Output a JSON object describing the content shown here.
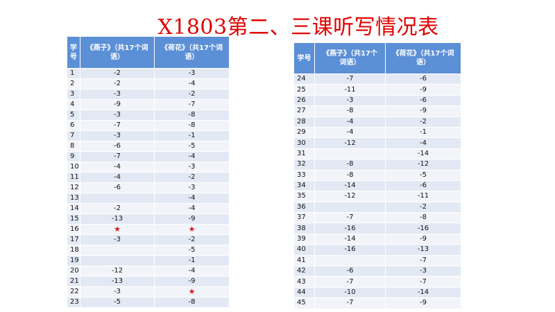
{
  "title": "X1803第二、三课听写情况表",
  "colors": {
    "title": "#e00000",
    "header_bg": "#5b8fd6",
    "row_odd": "#e3e9f4",
    "row_even": "#f2f4f9",
    "star": "#d81818"
  },
  "left_table": {
    "headers": {
      "no": "学号",
      "col1": "《燕子》（共17个词语）",
      "col2": "《荷花》（共17个词语）"
    },
    "rows": [
      {
        "no": "1",
        "a": "-2",
        "b": "-3"
      },
      {
        "no": "2",
        "a": "-2",
        "b": "-4"
      },
      {
        "no": "3",
        "a": "-3",
        "b": "-2"
      },
      {
        "no": "4",
        "a": "-9",
        "b": "-7"
      },
      {
        "no": "5",
        "a": "-3",
        "b": "-8"
      },
      {
        "no": "6",
        "a": "-7",
        "b": "-8"
      },
      {
        "no": "7",
        "a": "-3",
        "b": "-1"
      },
      {
        "no": "8",
        "a": "-6",
        "b": "-5"
      },
      {
        "no": "9",
        "a": "-7",
        "b": "-4"
      },
      {
        "no": "10",
        "a": "-4",
        "b": "-3"
      },
      {
        "no": "11",
        "a": "-4",
        "b": "-2"
      },
      {
        "no": "12",
        "a": "-6",
        "b": "-3"
      },
      {
        "no": "13",
        "a": "",
        "b": "-4"
      },
      {
        "no": "14",
        "a": "-2",
        "b": "-4"
      },
      {
        "no": "15",
        "a": "-13",
        "b": "-9"
      },
      {
        "no": "16",
        "a": "★",
        "b": "★"
      },
      {
        "no": "17",
        "a": "-3",
        "b": "-2"
      },
      {
        "no": "18",
        "a": "",
        "b": "-5"
      },
      {
        "no": "19",
        "a": "",
        "b": "-1"
      },
      {
        "no": "20",
        "a": "-12",
        "b": "-4"
      },
      {
        "no": "21",
        "a": "-13",
        "b": "-9"
      },
      {
        "no": "22",
        "a": "-3",
        "b": "★"
      },
      {
        "no": "23",
        "a": "-5",
        "b": "-8"
      }
    ]
  },
  "right_table": {
    "headers": {
      "no": "学号",
      "col1": "《燕子》（共17个词语）",
      "col2": "《荷花》（共17个词语）"
    },
    "rows": [
      {
        "no": "24",
        "a": "-7",
        "b": "-6"
      },
      {
        "no": "25",
        "a": "-11",
        "b": "-9"
      },
      {
        "no": "26",
        "a": "-3",
        "b": "-6"
      },
      {
        "no": "27",
        "a": "-8",
        "b": "-9"
      },
      {
        "no": "28",
        "a": "-4",
        "b": "-2"
      },
      {
        "no": "29",
        "a": "-4",
        "b": "-1"
      },
      {
        "no": "30",
        "a": "-12",
        "b": "-4"
      },
      {
        "no": "31",
        "a": "",
        "b": "-14"
      },
      {
        "no": "32",
        "a": "-8",
        "b": "-12"
      },
      {
        "no": "33",
        "a": "-8",
        "b": "-5"
      },
      {
        "no": "34",
        "a": "-14",
        "b": "-6"
      },
      {
        "no": "35",
        "a": "-12",
        "b": "-11"
      },
      {
        "no": "36",
        "a": "",
        "b": "-2"
      },
      {
        "no": "37",
        "a": "-7",
        "b": "-8"
      },
      {
        "no": "38",
        "a": "-16",
        "b": "-16"
      },
      {
        "no": "39",
        "a": "-14",
        "b": "-9"
      },
      {
        "no": "40",
        "a": "-16",
        "b": "-13"
      },
      {
        "no": "41",
        "a": "",
        "b": "-7"
      },
      {
        "no": "42",
        "a": "-6",
        "b": "-3"
      },
      {
        "no": "43",
        "a": "-7",
        "b": "-7"
      },
      {
        "no": "44",
        "a": "-10",
        "b": "-14"
      },
      {
        "no": "45",
        "a": "-7",
        "b": "-9"
      }
    ]
  }
}
